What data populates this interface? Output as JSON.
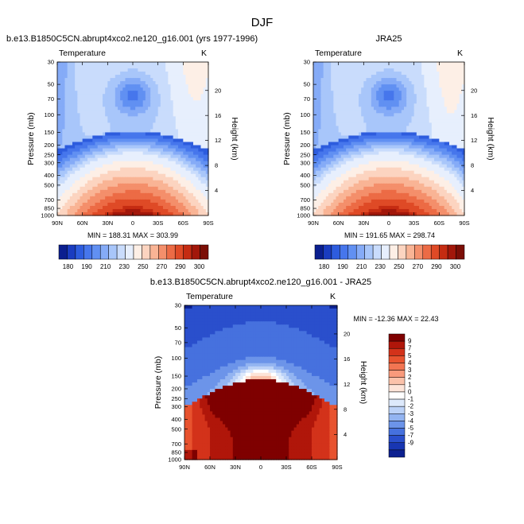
{
  "page": {
    "title": "DJF"
  },
  "chart_data": [
    {
      "type": "heatmap",
      "title": "b.e13.B1850C5CN.abrupt4xco2.ne120_g16.001 (yrs 1977-1996)",
      "subtitle_left": "Temperature",
      "subtitle_right": "K",
      "ylabel": "Pressure (mb)",
      "y2label": "Height (km)",
      "x_ticks": [
        "90N",
        "60N",
        "30N",
        "0",
        "30S",
        "60S",
        "90S"
      ],
      "y_ticks": [
        "30",
        "50",
        "70",
        "100",
        "150",
        "200",
        "250",
        "300",
        "400",
        "500",
        "700",
        "850",
        "1000"
      ],
      "y2_ticks": [
        "20",
        "16",
        "12",
        "8",
        "4"
      ],
      "ylim": [
        1000,
        30
      ],
      "stats": "MIN = 188.31  MAX = 303.99",
      "colorbar_labels": [
        "180",
        "190",
        "210",
        "230",
        "250",
        "270",
        "290",
        "300"
      ],
      "extremes": {
        "min": 188.31,
        "max": 303.99
      }
    },
    {
      "type": "heatmap",
      "title": "JRA25",
      "subtitle_left": "Temperature",
      "subtitle_right": "K",
      "ylabel": "Pressure (mb)",
      "y2label": "Height (km)",
      "x_ticks": [
        "90N",
        "60N",
        "30N",
        "0",
        "30S",
        "60S",
        "90S"
      ],
      "y_ticks": [
        "30",
        "50",
        "70",
        "100",
        "150",
        "200",
        "250",
        "300",
        "400",
        "500",
        "700",
        "850",
        "1000"
      ],
      "y2_ticks": [
        "20",
        "16",
        "12",
        "8",
        "4"
      ],
      "ylim": [
        1000,
        30
      ],
      "stats": "MIN = 191.65  MAX = 298.74",
      "colorbar_labels": [
        "180",
        "190",
        "210",
        "230",
        "250",
        "270",
        "290",
        "300"
      ],
      "extremes": {
        "min": 191.65,
        "max": 298.74
      }
    },
    {
      "type": "heatmap",
      "title": "b.e13.B1850C5CN.abrupt4xco2.ne120_g16.001 - JRA25",
      "subtitle_left": "Temperature",
      "subtitle_right": "K",
      "ylabel": "Pressure (mb)",
      "y2label": "Height (km)",
      "x_ticks": [
        "90N",
        "60N",
        "30N",
        "0",
        "30S",
        "60S",
        "90S"
      ],
      "y_ticks": [
        "30",
        "50",
        "70",
        "100",
        "150",
        "200",
        "250",
        "300",
        "400",
        "500",
        "700",
        "850",
        "1000"
      ],
      "y2_ticks": [
        "20",
        "16",
        "12",
        "8",
        "4"
      ],
      "ylim": [
        1000,
        30
      ],
      "stats": "MIN = -12.36  MAX = 22.43",
      "colorbar_labels": [
        "9",
        "7",
        "5",
        "4",
        "3",
        "2",
        "1",
        "0",
        "-1",
        "-2",
        "-3",
        "-4",
        "-5",
        "-7",
        "-9"
      ],
      "extremes": {
        "min": -12.36,
        "max": 22.43
      }
    }
  ],
  "colors": {
    "abs_scale": [
      "#0b1f8f",
      "#1a3cc0",
      "#2d5cde",
      "#4676ec",
      "#6190f2",
      "#85abf7",
      "#a8c6fa",
      "#c9dcfc",
      "#e7effd",
      "#fdefe6",
      "#fcd4c0",
      "#f9b495",
      "#f48f6b",
      "#ec6b45",
      "#df4a26",
      "#c52c12",
      "#a2170a",
      "#7b0e06"
    ],
    "diff_scale": [
      "#7f0000",
      "#b0160a",
      "#d3321a",
      "#e8532f",
      "#f27552",
      "#f89a7c",
      "#fbc2aa",
      "#fde4d8",
      "#ffffff",
      "#dde9fb",
      "#bcd2f7",
      "#93b4f1",
      "#6c94e9",
      "#4671de",
      "#2a4fcc",
      "#1836b2",
      "#0c2090"
    ]
  }
}
